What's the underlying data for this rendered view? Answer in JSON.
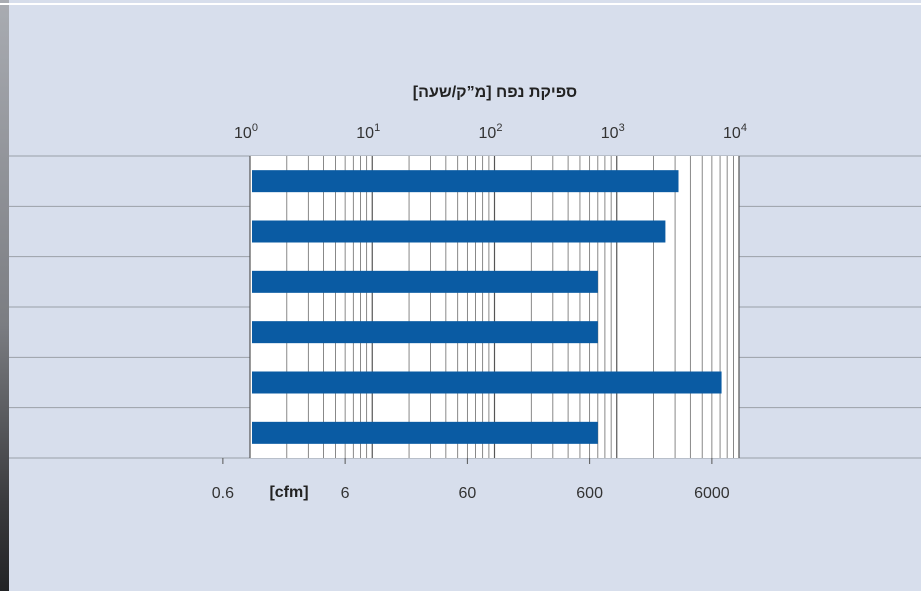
{
  "chart_data": {
    "type": "bar",
    "orientation": "horizontal",
    "title": "ספיקת נפח [מ”ק/שעה]",
    "x_scale": "log",
    "top_axis": {
      "unit": "m3/h",
      "ticks": [
        {
          "base": "10",
          "exp": "0",
          "value": 1
        },
        {
          "base": "10",
          "exp": "1",
          "value": 10
        },
        {
          "base": "10",
          "exp": "2",
          "value": 100
        },
        {
          "base": "10",
          "exp": "3",
          "value": 1000
        },
        {
          "base": "10",
          "exp": "4",
          "value": 10000
        }
      ]
    },
    "bottom_axis": {
      "unit_label": "[cfm]",
      "ticks": [
        {
          "label": "0.6",
          "value": 0.6
        },
        {
          "label": "6",
          "value": 6
        },
        {
          "label": "60",
          "value": 60
        },
        {
          "label": "600",
          "value": 600
        },
        {
          "label": "6000",
          "value": 6000
        }
      ]
    },
    "xlim": [
      1,
      10000
    ],
    "grid": true,
    "series": [
      {
        "color": "#0a5ba3",
        "values": [
          3200,
          2500,
          700,
          700,
          7200,
          700
        ]
      }
    ]
  }
}
